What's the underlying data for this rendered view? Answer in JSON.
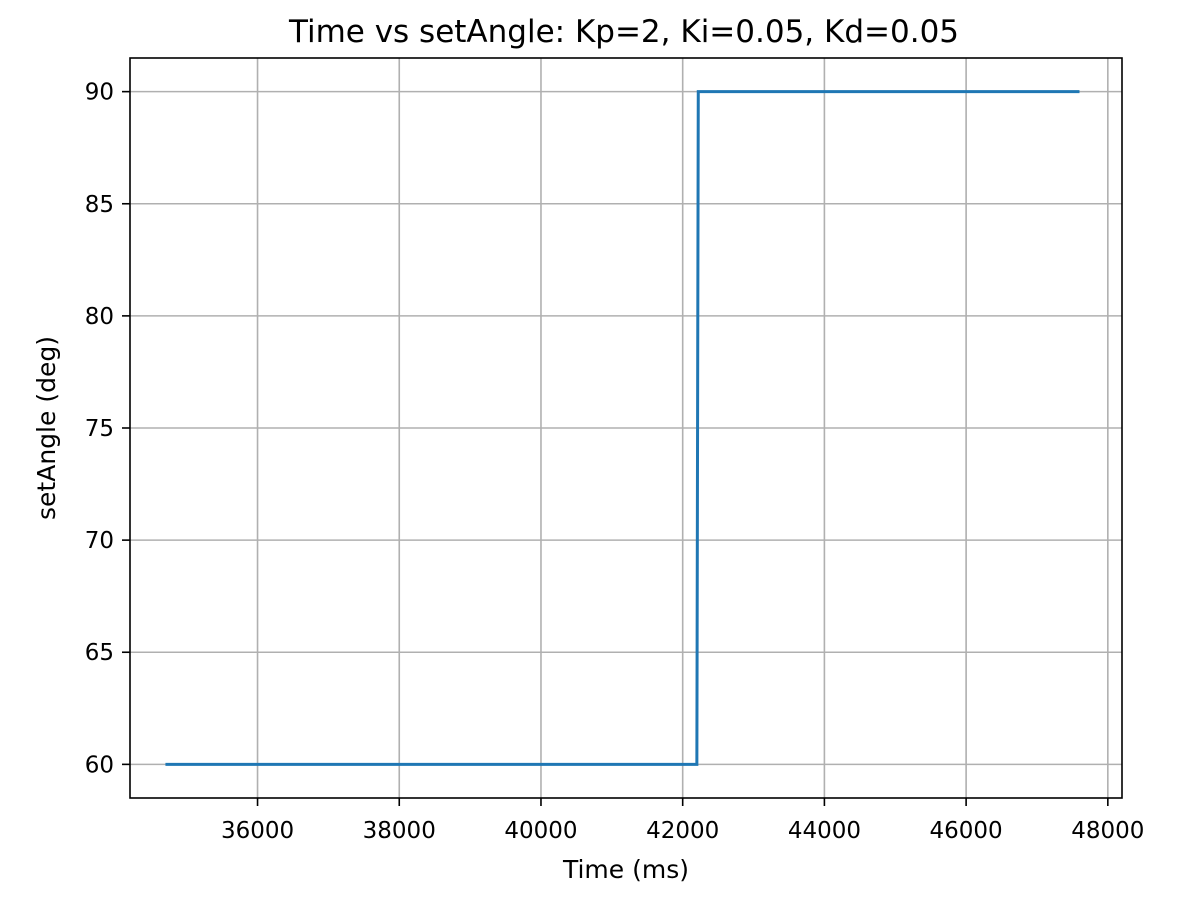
{
  "chart_data": {
    "type": "line",
    "title": "Time vs setAngle: Kp=2, Ki=0.05, Kd=0.05",
    "xlabel": "Time (ms)",
    "ylabel": "setAngle (deg)",
    "xlim": [
      34200,
      48200
    ],
    "ylim": [
      58.5,
      91.5
    ],
    "xticks": [
      36000,
      38000,
      40000,
      42000,
      44000,
      46000,
      48000
    ],
    "yticks": [
      60,
      65,
      70,
      75,
      80,
      85,
      90
    ],
    "grid": true,
    "colors": {
      "series": "#1f77b4",
      "grid": "#b0b0b0"
    },
    "series": [
      {
        "x": [
          34700,
          42200,
          42220,
          47600
        ],
        "y": [
          60,
          60,
          90,
          90
        ]
      }
    ]
  }
}
